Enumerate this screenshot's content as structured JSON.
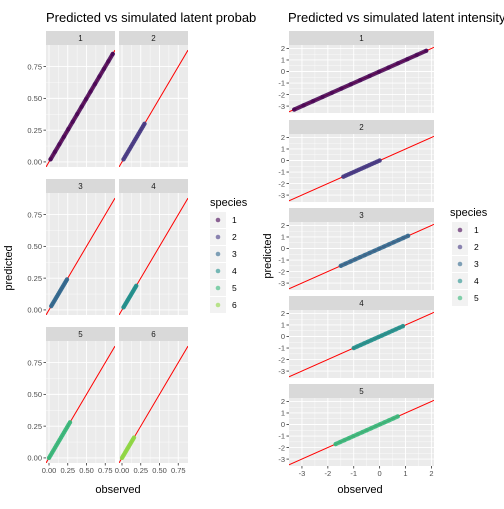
{
  "colors": {
    "panel_bg": "#EBEBEB",
    "strip_bg": "#D9D9D9",
    "grid": "#FFFFFF",
    "line": "#FF0000",
    "species": [
      "#440154",
      "#443983",
      "#31688E",
      "#21908C",
      "#35B779",
      "#8FD744"
    ]
  },
  "chart_data": [
    {
      "type": "scatter",
      "title": "Predicted vs simulated latent probab",
      "xlabel": "observed",
      "ylabel": "predicted",
      "xlim": [
        -0.04,
        0.88
      ],
      "ylim": [
        -0.04,
        0.92
      ],
      "x_ticks": [
        0,
        0.25,
        0.5,
        0.75
      ],
      "x_tick_labels": [
        "0.00",
        "0.25",
        "0.50",
        "0.75"
      ],
      "y_ticks": [
        0,
        0.25,
        0.5,
        0.75
      ],
      "y_tick_labels": [
        "0.00",
        "0.25",
        "0.50",
        "0.75"
      ],
      "reference_line": "y = x",
      "legend": {
        "title": "species",
        "labels": [
          "1",
          "2",
          "3",
          "4",
          "5",
          "6"
        ],
        "position": "right"
      },
      "facets": [
        {
          "label": "1",
          "species": "1",
          "x_range": [
            0.02,
            0.85
          ]
        },
        {
          "label": "2",
          "species": "2",
          "x_range": [
            0.02,
            0.3
          ]
        },
        {
          "label": "3",
          "species": "3",
          "x_range": [
            0.03,
            0.24
          ]
        },
        {
          "label": "4",
          "species": "4",
          "x_range": [
            0.02,
            0.19
          ]
        },
        {
          "label": "5",
          "species": "5",
          "x_range": [
            0.0,
            0.28
          ]
        },
        {
          "label": "6",
          "species": "6",
          "x_range": [
            0.0,
            0.16
          ]
        }
      ]
    },
    {
      "type": "scatter",
      "title": "Predicted vs simulated latent intensity",
      "xlabel": "observed",
      "ylabel": "predicted",
      "xlim": [
        -3.5,
        2.1
      ],
      "ylim": [
        -3.6,
        2.3
      ],
      "x_ticks": [
        -3,
        -2,
        -1,
        0,
        1,
        2
      ],
      "x_tick_labels": [
        "-3",
        "-2",
        "-1",
        "0",
        "1",
        "2"
      ],
      "y_ticks": [
        -3,
        -2,
        -1,
        0,
        1,
        2
      ],
      "y_tick_labels": [
        "-3",
        "-2",
        "-1",
        "0",
        "1",
        "2"
      ],
      "reference_line": "y = x",
      "legend": {
        "title": "species",
        "labels": [
          "1",
          "2",
          "3",
          "4",
          "5"
        ],
        "position": "right"
      },
      "facets": [
        {
          "label": "1",
          "species": "1",
          "x_range": [
            -3.3,
            1.8
          ]
        },
        {
          "label": "2",
          "species": "2",
          "x_range": [
            -1.4,
            0.0
          ]
        },
        {
          "label": "3",
          "species": "3",
          "x_range": [
            -1.5,
            1.1
          ]
        },
        {
          "label": "4",
          "species": "4",
          "x_range": [
            -1.0,
            0.9
          ]
        },
        {
          "label": "5",
          "species": "5",
          "x_range": [
            -1.7,
            0.7
          ]
        }
      ]
    }
  ]
}
